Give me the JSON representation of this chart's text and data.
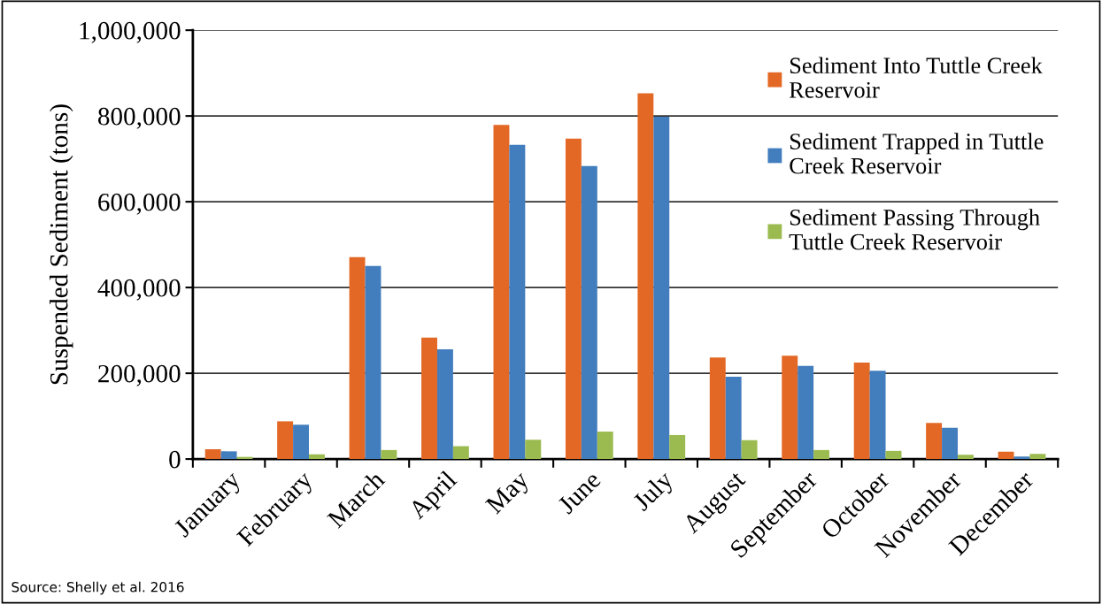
{
  "chart_data": {
    "type": "bar",
    "ylabel": "Suspended Sediment (tons)",
    "categories": [
      "January",
      "February",
      "March",
      "April",
      "May",
      "June",
      "July",
      "August",
      "September",
      "October",
      "November",
      "December"
    ],
    "series": [
      {
        "name": "Sediment Into Tuttle Creek Reservoir",
        "color": "#e36825",
        "values": [
          23000,
          88000,
          471000,
          283000,
          779000,
          747000,
          853000,
          237000,
          241000,
          225000,
          84000,
          17000
        ]
      },
      {
        "name": "Sediment Trapped in Tuttle Creek Reservoir",
        "color": "#427dbd",
        "values": [
          18000,
          80000,
          450000,
          256000,
          733000,
          683000,
          798000,
          192000,
          217000,
          206000,
          73000,
          6000
        ]
      },
      {
        "name": "Sediment Passing Through Tuttle Creek Reservoir",
        "color": "#9bbb50",
        "values": [
          5000,
          11000,
          21000,
          30000,
          45000,
          64000,
          56000,
          44000,
          21000,
          19000,
          10000,
          12000
        ]
      }
    ],
    "ylim": [
      0,
      1000000
    ],
    "yticks": [
      {
        "value": 0,
        "label": "0"
      },
      {
        "value": 200000,
        "label": "200,000"
      },
      {
        "value": 400000,
        "label": "400,000"
      },
      {
        "value": 600000,
        "label": "600,000"
      },
      {
        "value": 800000,
        "label": "800,000"
      },
      {
        "value": 1000000,
        "label": "1,000,000"
      }
    ],
    "grid": "y",
    "legend": "top right",
    "annotations": [
      "Source: Shelly et al. 2016"
    ]
  }
}
